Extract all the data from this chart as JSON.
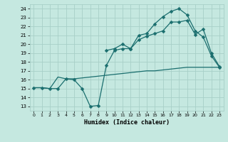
{
  "xlabel": "Humidex (Indice chaleur)",
  "bg_color": "#c5e8e0",
  "grid_color": "#a8cfc8",
  "line_color": "#1a6e6e",
  "xlim": [
    -0.5,
    23.5
  ],
  "ylim": [
    12.5,
    24.5
  ],
  "xticks": [
    0,
    1,
    2,
    3,
    4,
    5,
    6,
    7,
    8,
    9,
    10,
    11,
    12,
    13,
    14,
    15,
    16,
    17,
    18,
    19,
    20,
    21,
    22,
    23
  ],
  "yticks": [
    13,
    14,
    15,
    16,
    17,
    18,
    19,
    20,
    21,
    22,
    23,
    24
  ],
  "line1_x": [
    9,
    10,
    11,
    12,
    13,
    14,
    15,
    16,
    17,
    18,
    19,
    20,
    21,
    22,
    23
  ],
  "line1_y": [
    19.3,
    19.5,
    20.0,
    19.5,
    21.0,
    21.2,
    22.3,
    23.1,
    23.7,
    24.0,
    23.3,
    21.5,
    20.8,
    18.7,
    17.4
  ],
  "line2_x": [
    0,
    1,
    2,
    3,
    4,
    5,
    6,
    7,
    8,
    9,
    10,
    11,
    12,
    13,
    14,
    15,
    16,
    17,
    18,
    19,
    20,
    21,
    22,
    23
  ],
  "line2_y": [
    15.1,
    15.1,
    15.0,
    15.0,
    16.1,
    16.0,
    15.0,
    13.0,
    13.1,
    17.6,
    19.3,
    19.5,
    19.5,
    20.5,
    20.9,
    21.2,
    21.5,
    22.5,
    22.5,
    22.7,
    21.1,
    21.7,
    19.0,
    17.5
  ],
  "line3_x": [
    0,
    1,
    2,
    3,
    4,
    5,
    6,
    7,
    8,
    9,
    10,
    11,
    12,
    13,
    14,
    15,
    16,
    17,
    18,
    19,
    20,
    21,
    22,
    23
  ],
  "line3_y": [
    15.1,
    15.1,
    15.0,
    16.3,
    16.1,
    16.1,
    16.2,
    16.3,
    16.4,
    16.5,
    16.6,
    16.7,
    16.8,
    16.9,
    17.0,
    17.0,
    17.1,
    17.2,
    17.3,
    17.4,
    17.4,
    17.4,
    17.4,
    17.4
  ]
}
